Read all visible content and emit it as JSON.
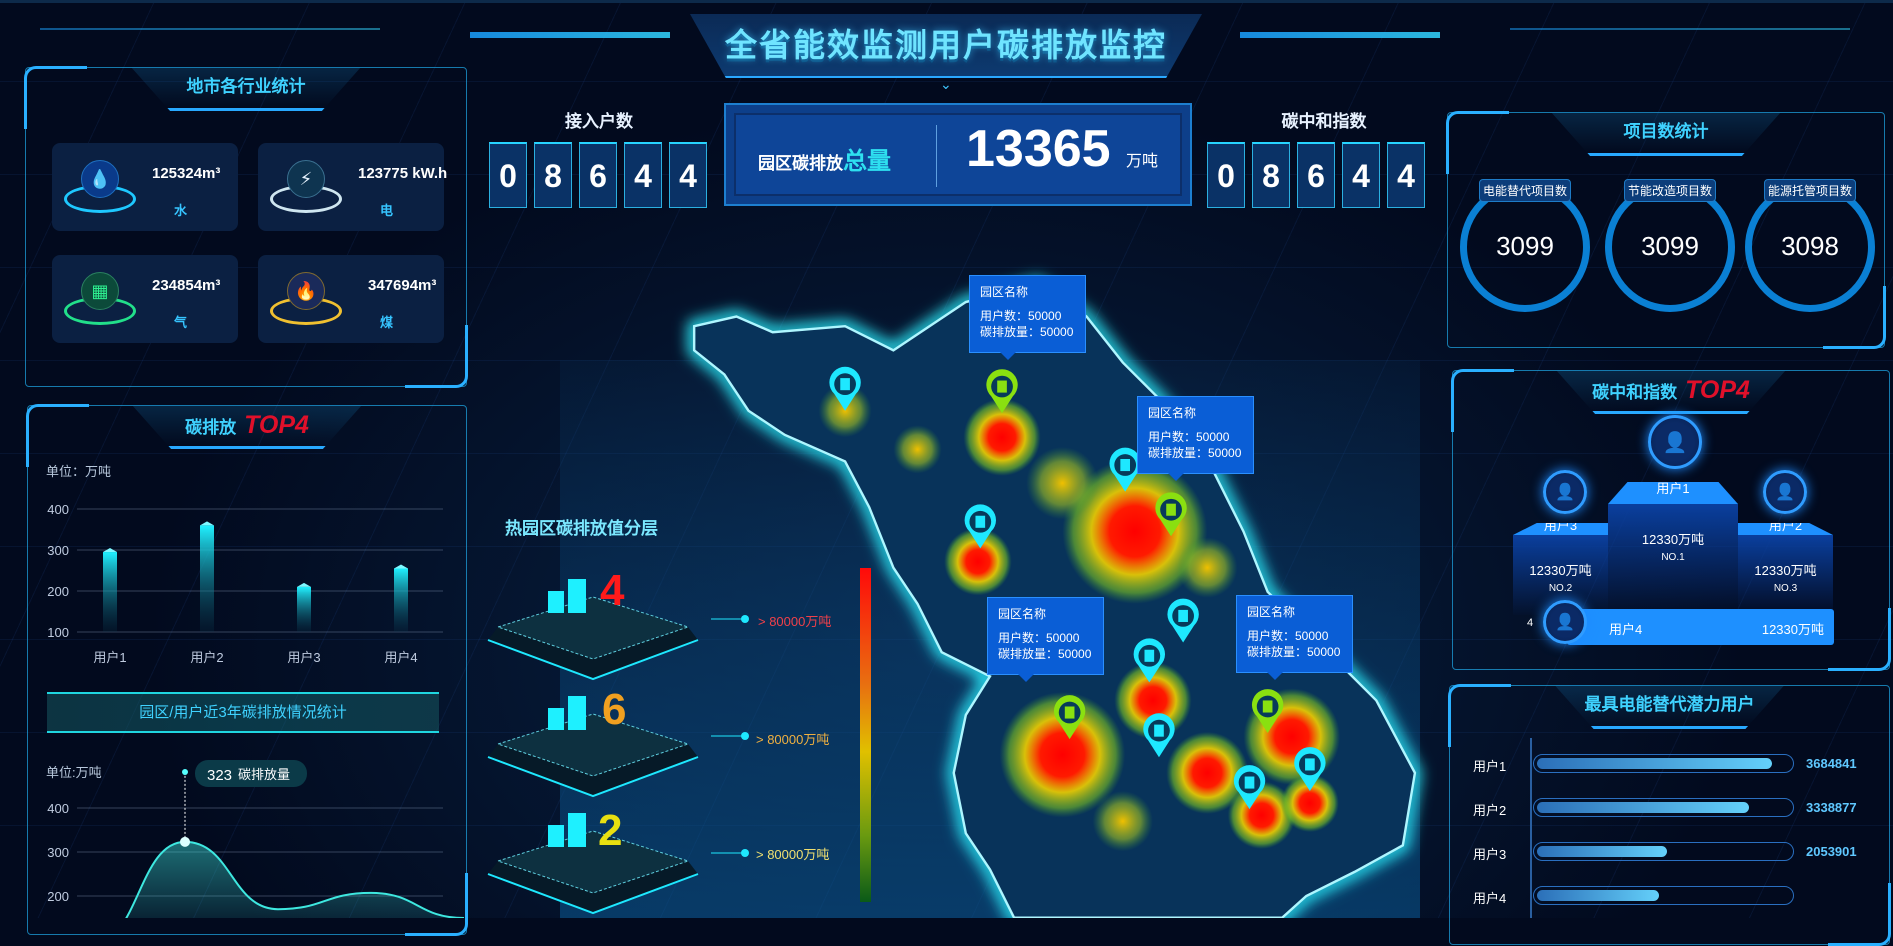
{
  "header": {
    "title": "全省能效监测用户碳排放监控"
  },
  "industry": {
    "title": "地市各行业统计",
    "items": [
      {
        "value": "125324m³",
        "label": "水",
        "icon": "water-drop-icon",
        "color": "#1ec8ff"
      },
      {
        "value": "123775 kW.h",
        "label": "电",
        "icon": "lightning-icon",
        "color": "#cfe6f0"
      },
      {
        "value": "234854m³",
        "label": "气",
        "icon": "gas-tank-icon",
        "color": "#22e08a"
      },
      {
        "value": "347694m³",
        "label": "煤",
        "icon": "flame-icon",
        "color": "#f0c030"
      }
    ]
  },
  "emission_top": {
    "title": "碳排放",
    "highlight": "TOP4",
    "unit": "单位：万吨"
  },
  "trend": {
    "banner": "园区/用户近3年碳排放情况统计",
    "unit": "单位:万吨",
    "tooltip_value": "323",
    "tooltip_label": "碳排放量"
  },
  "access": {
    "label": "接入户数",
    "digits": [
      "0",
      "8",
      "6",
      "4",
      "4"
    ]
  },
  "total": {
    "label": "园区碳排放",
    "highlight": "总量",
    "value": "13365",
    "unit": "万吨"
  },
  "neutral": {
    "label": "碳中和指数",
    "digits": [
      "0",
      "8",
      "6",
      "4",
      "4"
    ]
  },
  "layers": {
    "title": "热园区碳排放值分层",
    "items": [
      {
        "count": "4",
        "label": "> 80000万吨",
        "color": "#ff1a1a",
        "label_color": "#f0404a"
      },
      {
        "count": "6",
        "label": "> 80000万吨",
        "color": "#f0a020",
        "label_color": "#f0b040"
      },
      {
        "count": "2",
        "label": "> 80000万吨",
        "color": "#e8e010",
        "label_color": "#f0e070"
      }
    ]
  },
  "map": {
    "tooltips": [
      {
        "name": "园区名称",
        "users": "用户数：50000",
        "emission": "碳排放量：50000"
      },
      {
        "name": "园区名称",
        "users": "用户数：50000",
        "emission": "碳排放量：50000"
      },
      {
        "name": "园区名称",
        "users": "用户数：50000",
        "emission": "碳排放量：50000"
      },
      {
        "name": "园区名称",
        "users": "用户数：50000",
        "emission": "碳排放量：50000"
      }
    ]
  },
  "projects": {
    "title": "项目数统计",
    "items": [
      {
        "label": "电能替代项目数",
        "value": "3099"
      },
      {
        "label": "节能改造项目数",
        "value": "3099"
      },
      {
        "label": "能源托管项目数",
        "value": "3098"
      }
    ]
  },
  "neutral_top": {
    "title": "碳中和指数",
    "highlight": "TOP4",
    "first": {
      "name": "用户1",
      "value": "12330万吨",
      "rank": "NO.1"
    },
    "second": {
      "name": "用户3",
      "value": "12330万吨",
      "rank": "NO.2"
    },
    "third": {
      "name": "用户2",
      "value": "12330万吨",
      "rank": "NO.3"
    },
    "fourth": {
      "rank": "4",
      "name": "用户4",
      "value": "12330万吨"
    }
  },
  "potential": {
    "title": "最具电能替代潜力用户",
    "items": [
      {
        "label": "用户1",
        "value": "3684841",
        "fill": 0.92
      },
      {
        "label": "用户2",
        "value": "3338877",
        "fill": 0.83
      },
      {
        "label": "用户3",
        "value": "2053901",
        "fill": 0.51
      },
      {
        "label": "用户4",
        "value": "",
        "fill": 0.48
      }
    ]
  },
  "chart_data": [
    {
      "type": "bar",
      "categories": [
        "用户1",
        "用户2",
        "用户3",
        "用户4"
      ],
      "values": [
        295,
        360,
        210,
        255
      ],
      "ylabel": "单位：万吨",
      "ylim": [
        100,
        400
      ],
      "yticks": [
        100,
        200,
        300,
        400
      ],
      "grid": true,
      "color": "#1ee0f0"
    },
    {
      "type": "area",
      "values": [
        90,
        323,
        170,
        207,
        150
      ],
      "ylabel": "单位:万吨",
      "yticks": [
        200,
        300,
        400
      ],
      "ylim": [
        100,
        400
      ],
      "grid": true,
      "annotation": {
        "value": "323",
        "label": "碳排放量"
      },
      "color": "#3ee8e0"
    }
  ]
}
